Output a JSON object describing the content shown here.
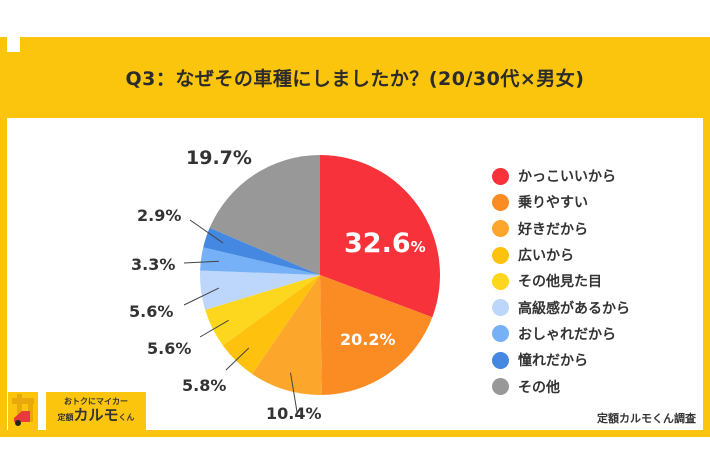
{
  "title": "Q3：なぜその車種にしましたか？(20/30代×男女)",
  "credit": "定額カルモくん調査",
  "logo": {
    "tagline": "おトクにマイカー",
    "prefix": "定額",
    "name": "カルモ",
    "suffix": "くん"
  },
  "chart_data": {
    "type": "pie",
    "title": "Q3：なぜその車種にしましたか？(20/30代×男女)",
    "start_angle": "top (12 o'clock), clockwise",
    "legend_position": "right",
    "slices": [
      {
        "label": "かっこいいから",
        "value": 32.6,
        "display": "32.6",
        "color": "#f7323a"
      },
      {
        "label": "乗りやすい",
        "value": 20.2,
        "display": "20.2%",
        "color": "#fb8c23"
      },
      {
        "label": "好きだから",
        "value": 10.4,
        "display": "10.4%",
        "color": "#fca72c"
      },
      {
        "label": "広いから",
        "value": 5.8,
        "display": "5.8%",
        "color": "#fdc10e"
      },
      {
        "label": "その他見た目",
        "value": 5.6,
        "display": "5.6%",
        "color": "#fdd71d"
      },
      {
        "label": "高級感があるから",
        "value": 5.6,
        "display": "5.6%",
        "color": "#bcd7fb"
      },
      {
        "label": "おしゃれだから",
        "value": 3.3,
        "display": "3.3%",
        "color": "#76b0f7"
      },
      {
        "label": "憧れだから",
        "value": 2.9,
        "display": "2.9%",
        "color": "#4488e2"
      },
      {
        "label": "その他",
        "value": 19.7,
        "display": "19.7%",
        "color": "#989898"
      }
    ]
  }
}
